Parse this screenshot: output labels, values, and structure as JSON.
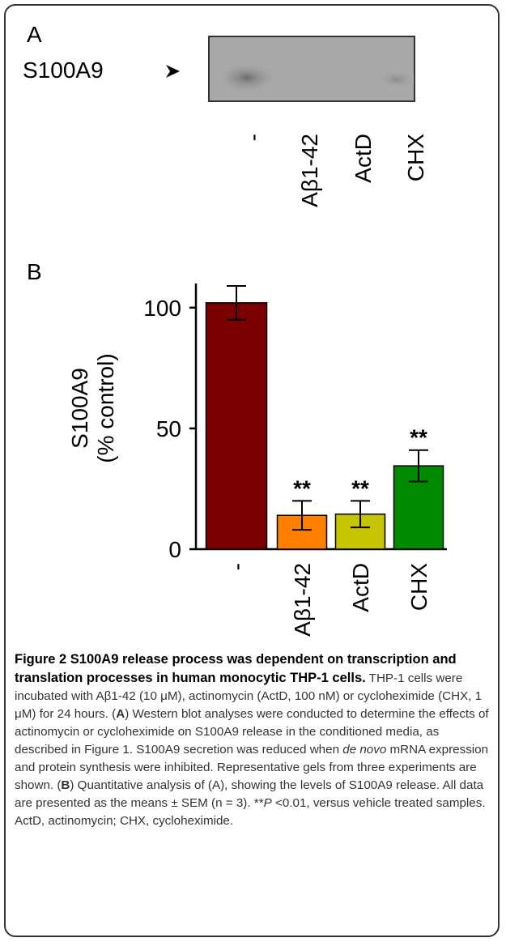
{
  "panel_a": {
    "label": "A",
    "blot_label": "S100A9",
    "lanes": [
      "-",
      "Aβ1-42",
      "ActD",
      "CHX"
    ]
  },
  "chart_data": {
    "type": "bar",
    "panel_label": "B",
    "ylabel": [
      "S100A9",
      "(% control)"
    ],
    "categories": [
      "-",
      "Aβ1-42",
      "ActD",
      "CHX"
    ],
    "values": [
      102,
      14,
      14.5,
      34.5
    ],
    "errors": [
      7,
      6,
      5.5,
      6.5
    ],
    "annotations": [
      null,
      "**",
      "**",
      "**"
    ],
    "colors": [
      "#7a0000",
      "#ff8000",
      "#c4c400",
      "#008a00"
    ],
    "ylim": [
      0,
      110
    ],
    "yticks": [
      0,
      50,
      100
    ],
    "grid": false
  },
  "caption": {
    "title": "Figure 2 S100A9 release process was dependent on transcription and translation processes in human monocytic THP-1 cells.",
    "body": [
      {
        "text": " THP-1 cells were incubated with Aβ1-42 (10 μM), actinomycin (ActD, 100 nM) or cycloheximide (CHX, 1 μM) for 24 hours. (",
        "style": "normal"
      },
      {
        "text": "A",
        "style": "bold"
      },
      {
        "text": ") Western blot analyses were conducted to determine the effects of actinomycin or cycloheximide on S100A9 release in the conditioned media, as described in Figure 1. S100A9 secretion was reduced when ",
        "style": "normal"
      },
      {
        "text": "de novo",
        "style": "italic"
      },
      {
        "text": " mRNA expression and protein synthesis were inhibited. Representative gels from three experiments are shown. (",
        "style": "normal"
      },
      {
        "text": "B",
        "style": "bold"
      },
      {
        "text": ") Quantitative analysis of (A), showing the levels of S100A9 release. All data are presented as the means ± SEM (n = 3). **",
        "style": "normal"
      },
      {
        "text": "P",
        "style": "italic"
      },
      {
        "text": " <0.01, versus vehicle treated samples. ActD, actinomycin; CHX, cycloheximide.",
        "style": "normal"
      }
    ]
  }
}
